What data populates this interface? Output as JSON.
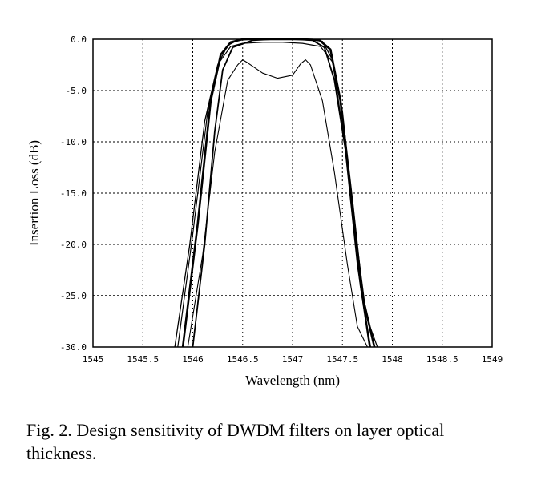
{
  "caption": "Fig. 2. Design sensitivity of DWDM filters on layer optical thickness.",
  "chart_data": {
    "type": "line",
    "title": "",
    "xlabel": "Wavelength (nm)",
    "ylabel": "Insertion Loss (dB)",
    "xlim": [
      1545,
      1549
    ],
    "ylim": [
      -30,
      0
    ],
    "x_ticks": [
      1545,
      1545.5,
      1546,
      1546.5,
      1547,
      1547.5,
      1548,
      1548.5,
      1549
    ],
    "x_tick_labels": [
      "1545",
      "1545.5",
      "1546",
      "1546.5",
      "1547",
      "1547.5",
      "1548",
      "1548.5",
      "1549"
    ],
    "y_ticks": [
      0,
      -5,
      -10,
      -15,
      -20,
      -25,
      -30
    ],
    "y_tick_labels": [
      "0.0",
      "-5.0",
      "-10.0",
      "-15.0",
      "-20.0",
      "-25.0",
      "-30.0"
    ],
    "grid": true,
    "series": [
      {
        "x": [
          1545.82,
          1545.97,
          1546.12,
          1546.25,
          1546.35,
          1546.45,
          1546.6,
          1546.8,
          1547.0,
          1547.2,
          1547.3,
          1547.4,
          1547.52,
          1547.65,
          1547.77
        ],
        "y": [
          -30,
          -20,
          -8,
          -2.5,
          -0.6,
          -0.1,
          0,
          0,
          0,
          0,
          -0.2,
          -2,
          -10,
          -22,
          -30
        ]
      },
      {
        "x": [
          1545.9,
          1546.05,
          1546.18,
          1546.28,
          1546.38,
          1546.5,
          1546.7,
          1546.9,
          1547.1,
          1547.27,
          1547.38,
          1547.48,
          1547.6,
          1547.7,
          1547.82
        ],
        "y": [
          -30,
          -18,
          -6,
          -1.5,
          -0.3,
          0,
          0,
          0,
          0,
          -0.1,
          -1,
          -6,
          -16,
          -25,
          -30
        ]
      },
      {
        "x": [
          1545.85,
          1546.0,
          1546.15,
          1546.27,
          1546.38,
          1546.5,
          1546.7,
          1546.9,
          1547.1,
          1547.28,
          1547.4,
          1547.5,
          1547.62,
          1547.74,
          1547.85
        ],
        "y": [
          -30,
          -19,
          -7,
          -2.2,
          -0.7,
          -0.4,
          -0.3,
          -0.3,
          -0.4,
          -0.7,
          -2.2,
          -7,
          -18,
          -27,
          -30
        ]
      },
      {
        "x": [
          1545.95,
          1546.1,
          1546.22,
          1546.35,
          1546.45,
          1546.5,
          1546.55,
          1546.7,
          1546.85,
          1547.0,
          1547.08,
          1547.13,
          1547.18,
          1547.3,
          1547.42,
          1547.55,
          1547.65,
          1547.75
        ],
        "y": [
          -30,
          -21,
          -11,
          -4,
          -2.5,
          -2,
          -2.3,
          -3.3,
          -3.8,
          -3.5,
          -2.4,
          -2.0,
          -2.5,
          -6,
          -13,
          -22,
          -28,
          -30
        ]
      },
      {
        "x": [
          1546.0,
          1546.12,
          1546.22,
          1546.3,
          1546.4,
          1546.6,
          1546.8,
          1547.0,
          1547.2,
          1547.32,
          1547.42,
          1547.55,
          1547.68,
          1547.78
        ],
        "y": [
          -30,
          -20,
          -9,
          -3,
          -0.8,
          -0.1,
          0,
          0,
          -0.1,
          -0.8,
          -4,
          -12,
          -24,
          -30
        ]
      }
    ]
  }
}
